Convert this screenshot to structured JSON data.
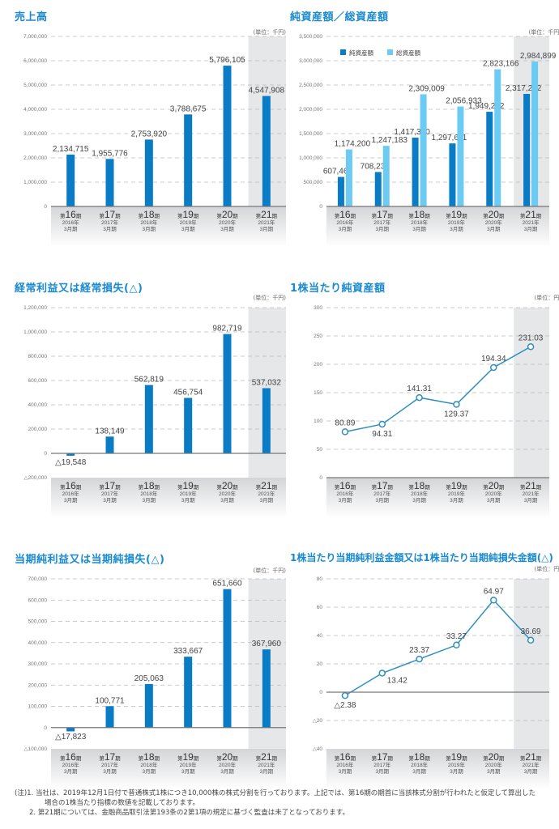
{
  "categories": [
    {
      "period": "第16期",
      "num": "16",
      "year": "2016年",
      "month": "3月期"
    },
    {
      "period": "第17期",
      "num": "17",
      "year": "2017年",
      "month": "3月期"
    },
    {
      "period": "第18期",
      "num": "18",
      "year": "2018年",
      "month": "3月期"
    },
    {
      "period": "第19期",
      "num": "19",
      "year": "2019年",
      "month": "3月期"
    },
    {
      "period": "第20期",
      "num": "20",
      "year": "2020年",
      "month": "3月期"
    },
    {
      "period": "第21期",
      "num": "21",
      "year": "2021年",
      "month": "3月期"
    }
  ],
  "colors": {
    "title": "#1a8ad0",
    "bar_dark": "#0a7cc6",
    "bar_light": "#6ccbf2",
    "line": "#2f8fbf",
    "highlight_bg": "#e6e7e9",
    "axis_band": "#d4d5d8"
  },
  "chart_data": [
    {
      "id": "sales",
      "type": "bar",
      "title": "売上高",
      "unit": "(単位：千円)",
      "ylim": [
        0,
        7000000
      ],
      "yticks": [
        0,
        1000000,
        2000000,
        3000000,
        4000000,
        5000000,
        6000000,
        7000000
      ],
      "ytick_labels": [
        "0",
        "1,000,000",
        "2,000,000",
        "3,000,000",
        "4,000,000",
        "5,000,000",
        "6,000,000",
        "7,000,000"
      ],
      "categories": [
        "第16期 2016年3月期",
        "第17期 2017年3月期",
        "第18期 2018年3月期",
        "第19期 2019年3月期",
        "第20期 2020年3月期",
        "第21期 2021年3月期"
      ],
      "values": [
        2134715,
        1955776,
        2753920,
        3788675,
        5796105,
        4547908
      ],
      "labels": [
        "2,134,715",
        "1,955,776",
        "2,753,920",
        "3,788,675",
        "5,796,105",
        "4,547,908"
      ],
      "grid": true,
      "highlight_index": 5
    },
    {
      "id": "assets",
      "type": "bar",
      "title": "純資産額／総資産額",
      "unit": "(単位：千円)",
      "ylim": [
        0,
        3500000
      ],
      "yticks": [
        0,
        500000,
        1000000,
        1500000,
        2000000,
        2500000,
        3000000,
        3500000
      ],
      "ytick_labels": [
        "0",
        "500,000",
        "1,000,000",
        "1,500,000",
        "2,000,000",
        "2,500,000",
        "3,000,000",
        "3,500,000"
      ],
      "categories": [
        "第16期 2016年3月期",
        "第17期 2017年3月期",
        "第18期 2018年3月期",
        "第19期 2019年3月期",
        "第20期 2020年3月期",
        "第21期 2021年3月期"
      ],
      "legend_position": "top-left",
      "series": [
        {
          "name": "純資産額",
          "values": [
            607465,
            708237,
            1417300,
            1297611,
            1949272,
            2317232
          ],
          "labels": [
            "607,465",
            "708,237",
            "1,417,300",
            "1,297,611",
            "1,949,272",
            "2,317,232"
          ]
        },
        {
          "name": "総資産額",
          "values": [
            1174200,
            1247183,
            2309009,
            2056933,
            2823166,
            2984899
          ],
          "labels": [
            "1,174,200",
            "1,247,183",
            "2,309,009",
            "2,056,933",
            "2,823,166",
            "2,984,899"
          ]
        }
      ],
      "grid": true,
      "highlight_index": 5
    },
    {
      "id": "ordinary_income",
      "type": "bar",
      "title": "経常利益又は経常損失(△)",
      "unit": "(単位：千円)",
      "ylim": [
        -200000,
        1200000
      ],
      "yticks": [
        -200000,
        0,
        200000,
        400000,
        600000,
        800000,
        1000000,
        1200000
      ],
      "ytick_labels": [
        "△200,000",
        "0",
        "200,000",
        "400,000",
        "600,000",
        "800,000",
        "1,000,000",
        "1,200,000"
      ],
      "categories": [
        "第16期 2016年3月期",
        "第17期 2017年3月期",
        "第18期 2018年3月期",
        "第19期 2019年3月期",
        "第20期 2020年3月期",
        "第21期 2021年3月期"
      ],
      "values": [
        -19548,
        138149,
        562819,
        456754,
        982719,
        537032
      ],
      "labels": [
        "△19,548",
        "138,149",
        "562,819",
        "456,754",
        "982,719",
        "537,032"
      ],
      "grid": true,
      "highlight_index": 5
    },
    {
      "id": "bps",
      "type": "line",
      "title": "1株当たり純資産額",
      "unit": "(単位：円)",
      "ylim": [
        0,
        300
      ],
      "yticks": [
        0,
        50,
        100,
        150,
        200,
        250,
        300
      ],
      "ytick_labels": [
        "0",
        "50",
        "100",
        "150",
        "200",
        "250",
        "300"
      ],
      "categories": [
        "第16期 2016年3月期",
        "第17期 2017年3月期",
        "第18期 2018年3月期",
        "第19期 2019年3月期",
        "第20期 2020年3月期",
        "第21期 2021年3月期"
      ],
      "values": [
        80.89,
        94.31,
        141.31,
        129.37,
        194.34,
        231.03
      ],
      "labels": [
        "80.89",
        "94.31",
        "141.31",
        "129.37",
        "194.34",
        "231.03"
      ],
      "label_pos": [
        "above",
        "below",
        "above",
        "below",
        "above",
        "above"
      ],
      "grid": true,
      "highlight_index": 5
    },
    {
      "id": "net_income",
      "type": "bar",
      "title": "当期純利益又は当期純損失(△)",
      "unit": "(単位：千円)",
      "ylim": [
        -100000,
        700000
      ],
      "yticks": [
        -100000,
        0,
        100000,
        200000,
        300000,
        400000,
        500000,
        600000,
        700000
      ],
      "ytick_labels": [
        "△100,000",
        "0",
        "100,000",
        "200,000",
        "300,000",
        "400,000",
        "500,000",
        "600,000",
        "700,000"
      ],
      "categories": [
        "第16期 2016年3月期",
        "第17期 2017年3月期",
        "第18期 2018年3月期",
        "第19期 2019年3月期",
        "第20期 2020年3月期",
        "第21期 2021年3月期"
      ],
      "values": [
        -17823,
        100771,
        205063,
        333667,
        651660,
        367960
      ],
      "labels": [
        "△17,823",
        "100,771",
        "205,063",
        "333,667",
        "651,660",
        "367,960"
      ],
      "grid": true,
      "highlight_index": 5
    },
    {
      "id": "eps",
      "type": "line",
      "title": "1株当たり当期純利益金額又は1株当たり当期純損失金額(△)",
      "unit": "(単位：円)",
      "ylim": [
        -40,
        80
      ],
      "yticks": [
        -40,
        -20,
        0,
        20,
        40,
        60,
        80
      ],
      "ytick_labels": [
        "△40",
        "△20",
        "0",
        "20",
        "40",
        "60",
        "80"
      ],
      "categories": [
        "第16期 2016年3月期",
        "第17期 2017年3月期",
        "第18期 2018年3月期",
        "第19期 2019年3月期",
        "第20期 2020年3月期",
        "第21期 2021年3月期"
      ],
      "values": [
        -2.38,
        13.42,
        23.37,
        33.27,
        64.97,
        36.69
      ],
      "labels": [
        "△2.38",
        "13.42",
        "23.37",
        "33.27",
        "64.97",
        "36.69"
      ],
      "label_pos": [
        "below",
        "right",
        "above",
        "above",
        "above",
        "above"
      ],
      "grid": true,
      "highlight_index": 5
    }
  ],
  "panels": {
    "sales": {
      "title": "売上高",
      "unit": "(単位：千円)"
    },
    "assets": {
      "title": "純資産額／総資産額",
      "unit": "(単位：千円)"
    },
    "ordinary_income": {
      "title": "経常利益又は経常損失(△)",
      "unit": "(単位：千円)"
    },
    "bps": {
      "title": "1株当たり純資産額",
      "unit": "(単位：円)"
    },
    "net_income": {
      "title": "当期純利益又は当期純損失(△)",
      "unit": "(単位：千円)"
    },
    "eps": {
      "title": "1株当たり当期純利益金額又は1株当たり当期純損失金額(△)",
      "unit": "(単位：円)"
    }
  },
  "notes": {
    "line1": "(注)1. 当社は、2019年12月1日付で普通株式1株につき10,000株の株式分割を行っております。上記では、第16期の期首に当該株式分割が行われたと仮定して算出した",
    "line2": "場合の1株当たり指標の数値を記載しております。",
    "line3": "2. 第21期については、金融商品取引法第193条の2第1項の規定に基づく監査は未了となっております。"
  }
}
